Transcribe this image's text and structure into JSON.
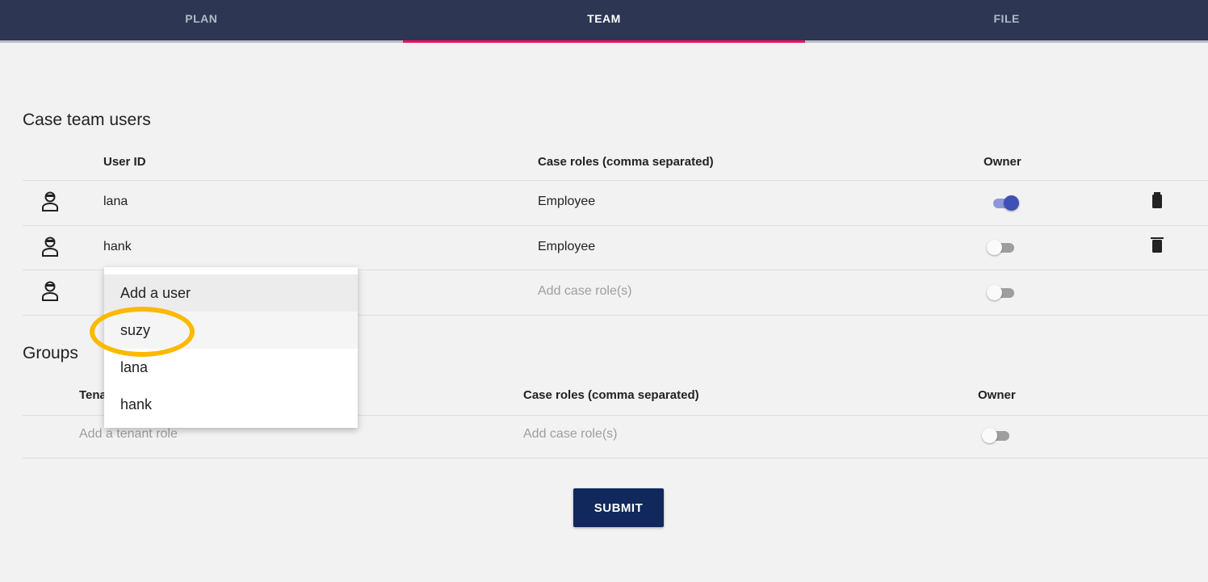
{
  "tabs": [
    {
      "label": "PLAN",
      "active": false
    },
    {
      "label": "TEAM",
      "active": true
    },
    {
      "label": "FILE",
      "active": false
    }
  ],
  "users": {
    "title": "Case team users",
    "columns": {
      "user_id": "User ID",
      "roles": "Case roles (comma separated)",
      "owner": "Owner"
    },
    "rows": [
      {
        "user": "lana",
        "roles": "Employee",
        "owner": true
      },
      {
        "user": "hank",
        "roles": "Employee",
        "owner": false
      }
    ],
    "new_row": {
      "roles_placeholder": "Add case role(s)",
      "owner": false
    }
  },
  "dropdown": {
    "items": [
      "Add a user",
      "suzy",
      "lana",
      "hank"
    ]
  },
  "groups": {
    "title": "Groups",
    "columns": {
      "tenant": "Tenant role",
      "roles": "Case roles (comma separated)",
      "owner": "Owner"
    },
    "new_row": {
      "tenant_placeholder": "Add a tenant role",
      "roles_placeholder": "Add case role(s)",
      "owner": false
    }
  },
  "submit_label": "SUBMIT",
  "colors": {
    "nav": "#2d3754",
    "accent": "#f0135f",
    "toggle_on": "#3f51b5",
    "submit": "#10285c",
    "highlight": "#fbb900"
  }
}
